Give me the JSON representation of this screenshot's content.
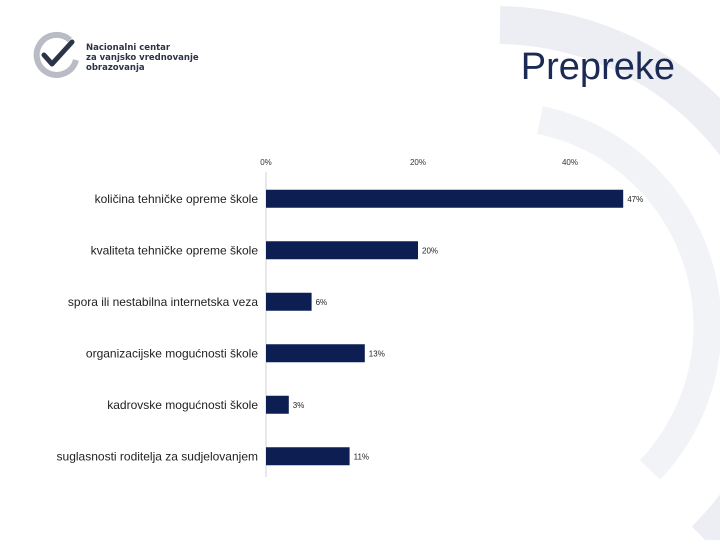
{
  "logo": {
    "lines": [
      "Nacionalni centar",
      "za vanjsko vrednovanje",
      "obrazovanja"
    ]
  },
  "title": "Prepreke",
  "colors": {
    "bar": "#0d1f52",
    "title": "#1c2b55",
    "arc": "#eceef3"
  },
  "chart_data": {
    "type": "bar",
    "orientation": "horizontal",
    "categories": [
      "količina tehničke opreme škole",
      "kvaliteta tehničke opreme škole",
      "spora ili nestabilna internetska veza",
      "organizacijske mogućnosti škole",
      "kadrovske mogućnosti škole",
      "suglasnosti roditelja za sudjelovanjem"
    ],
    "values": [
      47,
      20,
      6,
      13,
      3,
      11
    ],
    "value_labels": [
      "47%",
      "20%",
      "6%",
      "13%",
      "3%",
      "11%"
    ],
    "xticks": [
      0,
      20,
      40
    ],
    "xtick_labels": [
      "0%",
      "20%",
      "40%"
    ],
    "xlim": [
      0,
      47
    ],
    "xaxis_position": "top",
    "legend": false,
    "grid": false
  }
}
